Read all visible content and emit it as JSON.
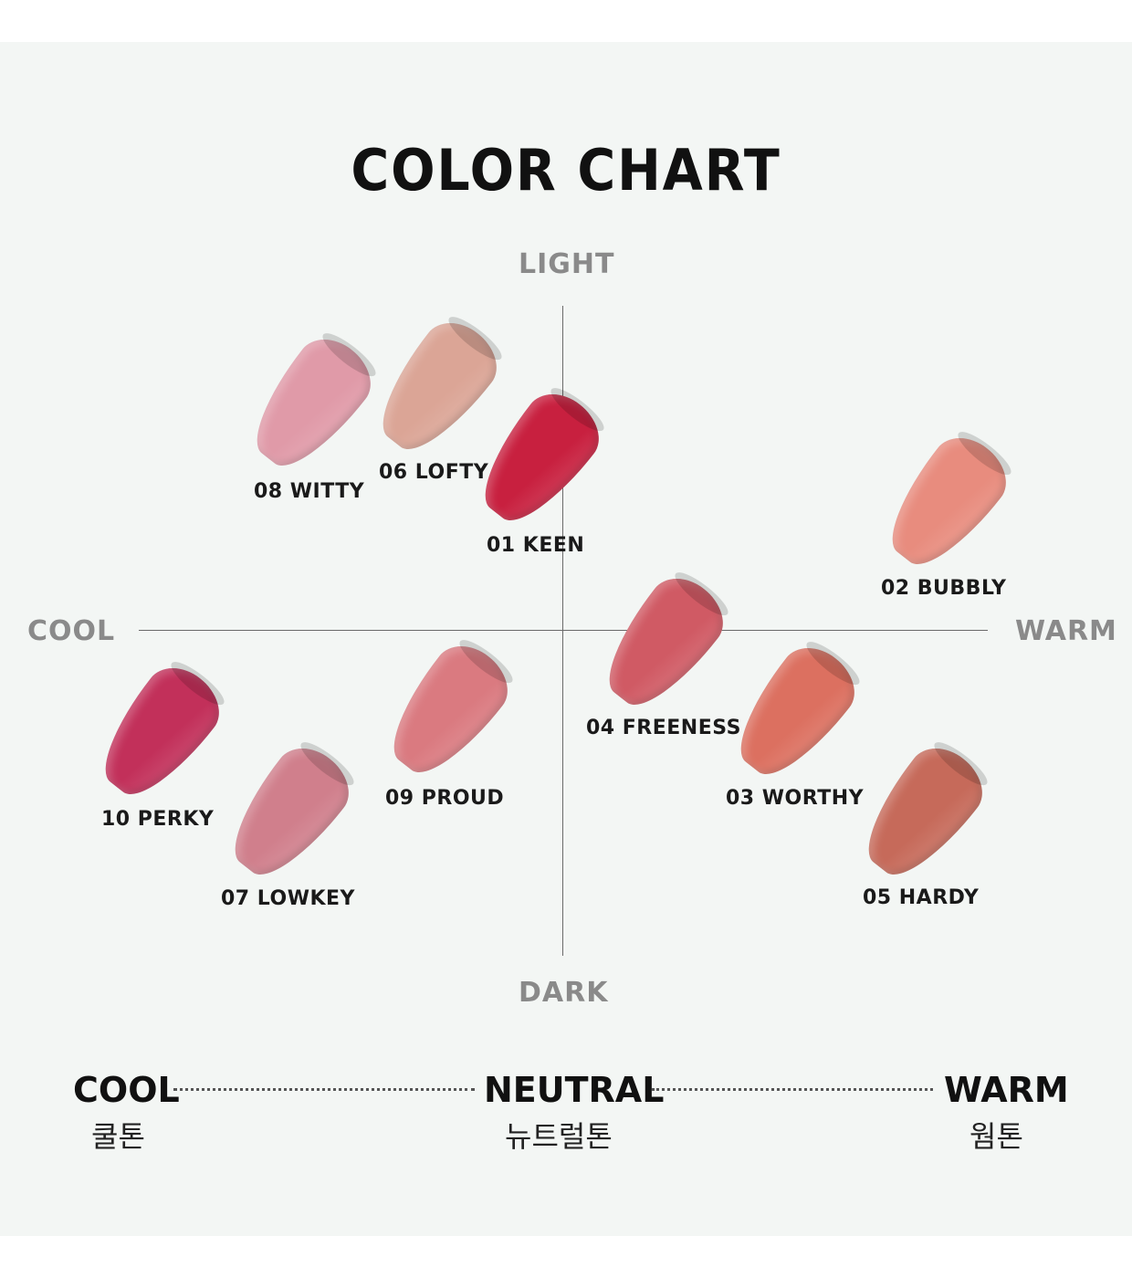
{
  "title": "COLOR CHART",
  "axes": {
    "top": "LIGHT",
    "bottom": "DARK",
    "left": "COOL",
    "right": "WARM"
  },
  "swatches": [
    {
      "label": "08 WITTY",
      "color": "#e09aa8"
    },
    {
      "label": "06 LOFTY",
      "color": "#dba596"
    },
    {
      "label": "01 KEEN",
      "color": "#c8203f"
    },
    {
      "label": "02 BUBBLY",
      "color": "#e88c7e"
    },
    {
      "label": "04 FREENESS",
      "color": "#d05a64"
    },
    {
      "label": "10 PERKY",
      "color": "#c2305a"
    },
    {
      "label": "07 LOWKEY",
      "color": "#d07f8c"
    },
    {
      "label": "09 PROUD",
      "color": "#da7a80"
    },
    {
      "label": "03 WORTHY",
      "color": "#dc7060"
    },
    {
      "label": "05 HARDY",
      "color": "#c66a5a"
    }
  ],
  "scale": {
    "cool": {
      "en": "COOL",
      "kr": "쿨톤"
    },
    "neutral": {
      "en": "NEUTRAL",
      "kr": "뉴트럴톤"
    },
    "warm": {
      "en": "WARM",
      "kr": "웜톤"
    }
  }
}
